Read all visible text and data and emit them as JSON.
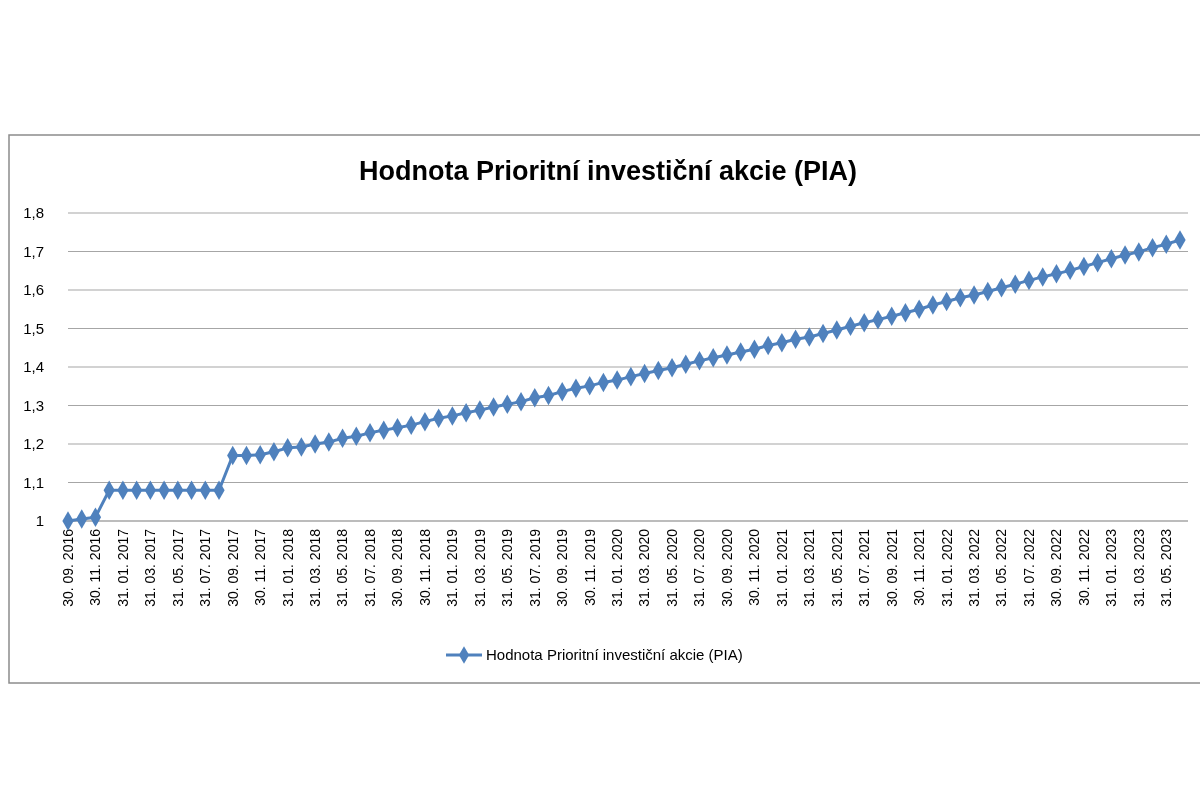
{
  "chart_data": {
    "type": "line",
    "title": "Hodnota Prioritní investiční akcie (PIA)",
    "categories": [
      "30. 09. 2016",
      null,
      "30. 11. 2016",
      null,
      "31. 01. 2017",
      null,
      "31. 03. 2017",
      null,
      "31. 05. 2017",
      null,
      "31. 07. 2017",
      null,
      "30. 09. 2017",
      null,
      "30. 11. 2017",
      null,
      "31. 01. 2018",
      null,
      "31. 03. 2018",
      null,
      "31. 05. 2018",
      null,
      "31. 07. 2018",
      null,
      "30. 09. 2018",
      null,
      "30. 11. 2018",
      null,
      "31. 01. 2019",
      null,
      "31. 03. 2019",
      null,
      "31. 05. 2019",
      null,
      "31. 07. 2019",
      null,
      "30. 09. 2019",
      null,
      "30. 11. 2019",
      null,
      "31. 01. 2020",
      null,
      "31. 03. 2020",
      null,
      "31. 05. 2020",
      null,
      "31. 07. 2020",
      null,
      "30. 09. 2020",
      null,
      "30. 11. 2020",
      null,
      "31. 01. 2021",
      null,
      "31. 03. 2021",
      null,
      "31. 05. 2021",
      null,
      "31. 07. 2021",
      null,
      "30. 09. 2021",
      null,
      "30. 11. 2021",
      null,
      "31. 01. 2022",
      null,
      "31. 03. 2022",
      null,
      "31. 05. 2022",
      null,
      "31. 07. 2022",
      null,
      "30. 09. 2022",
      null,
      "30. 11. 2022",
      null,
      "31. 01. 2023",
      null,
      "31. 03. 2023",
      null,
      "31. 05. 2023",
      null
    ],
    "series": [
      {
        "name": "Hodnota Prioritní investiční akcie (PIA)",
        "color": "#4f81bd",
        "values": [
          1.0,
          1.005,
          1.01,
          1.08,
          1.08,
          1.08,
          1.08,
          1.08,
          1.08,
          1.08,
          1.08,
          1.08,
          1.17,
          1.17,
          1.172,
          1.18,
          1.19,
          1.192,
          1.2,
          1.205,
          1.215,
          1.22,
          1.229,
          1.236,
          1.242,
          1.249,
          1.258,
          1.267,
          1.273,
          1.281,
          1.288,
          1.296,
          1.303,
          1.31,
          1.32,
          1.326,
          1.336,
          1.345,
          1.351,
          1.36,
          1.366,
          1.375,
          1.383,
          1.391,
          1.398,
          1.407,
          1.416,
          1.424,
          1.431,
          1.439,
          1.446,
          1.456,
          1.463,
          1.472,
          1.478,
          1.487,
          1.496,
          1.506,
          1.515,
          1.523,
          1.532,
          1.541,
          1.55,
          1.561,
          1.57,
          1.58,
          1.587,
          1.596,
          1.606,
          1.615,
          1.625,
          1.634,
          1.642,
          1.651,
          1.661,
          1.671,
          1.681,
          1.691,
          1.699,
          1.71,
          1.719,
          1.73
        ]
      }
    ],
    "ylim": [
      1,
      1.8
    ],
    "yticks": [
      1,
      {
        "value": 1.1,
        "label": "1,1"
      },
      {
        "value": 1.2,
        "label": "1,2"
      },
      {
        "value": 1.3,
        "label": "1,3"
      },
      {
        "value": 1.4,
        "label": "1,4"
      },
      {
        "value": 1.5,
        "label": "1,5"
      },
      {
        "value": 1.6,
        "label": "1,6"
      },
      {
        "value": 1.7,
        "label": "1,7"
      },
      {
        "value": 1.8,
        "label": "1,8"
      }
    ],
    "grid": "y",
    "legend": "bottom",
    "marker": "diamond",
    "line_style": "solid"
  }
}
